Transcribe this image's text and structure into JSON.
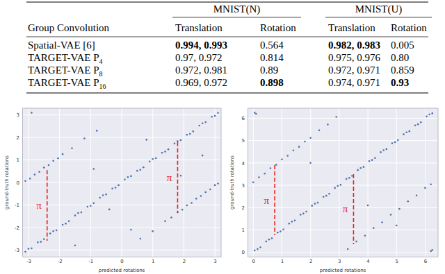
{
  "table": {
    "row_header": "Group Convolution",
    "groups": [
      {
        "label": "MNIST(N)",
        "columns": [
          "Translation",
          "Rotation"
        ]
      },
      {
        "label": "MNIST(U)",
        "columns": [
          "Translation",
          "Rotation"
        ]
      }
    ],
    "rows": [
      {
        "label": {
          "text": "Spatial-VAE [6]"
        },
        "cells": [
          {
            "text": "0.994, 0.993",
            "bold": true
          },
          {
            "text": "0.564",
            "bold": false
          },
          {
            "text": "0.982, 0.983",
            "bold": true
          },
          {
            "text": "0.005",
            "bold": false
          }
        ]
      },
      {
        "label": {
          "text": "TARGET-VAE P",
          "sub": "4"
        },
        "cells": [
          {
            "text": "0.97, 0.972",
            "bold": false
          },
          {
            "text": "0.814",
            "bold": false
          },
          {
            "text": "0.975, 0.976",
            "bold": false
          },
          {
            "text": "0.80",
            "bold": false
          }
        ]
      },
      {
        "label": {
          "text": "TARGET-VAE P",
          "sub": "8"
        },
        "cells": [
          {
            "text": "0.972, 0.981",
            "bold": false
          },
          {
            "text": "0.89",
            "bold": false
          },
          {
            "text": "0.972, 0.971",
            "bold": false
          },
          {
            "text": "0.859",
            "bold": false
          }
        ]
      },
      {
        "label": {
          "text": "TARGET-VAE P",
          "sub": "16"
        },
        "cells": [
          {
            "text": "0.969, 0.972",
            "bold": false
          },
          {
            "text": "0.898",
            "bold": true
          },
          {
            "text": "0.974, 0.971",
            "bold": false
          },
          {
            "text": "0.93",
            "bold": true
          }
        ]
      }
    ]
  },
  "chart_data": [
    {
      "type": "scatter",
      "x_label": "predicted rotations",
      "y_label": "ground-truth rotations",
      "color": "#4c72b0",
      "marker": "circle",
      "grid": true,
      "xlim": [
        -3.2,
        3.2
      ],
      "ylim": [
        -3.3,
        3.3
      ],
      "xticks": [
        -3,
        -2,
        -1,
        0,
        1,
        2,
        3
      ],
      "yticks": [
        -3,
        -2,
        -1,
        0,
        1,
        2,
        3
      ],
      "x": [
        -3.1,
        -2.9,
        -2.7,
        -2.5,
        -2.3,
        -2.1,
        -1.9,
        -1.7,
        -1.5,
        -1.3,
        -1.1,
        -0.9,
        -0.7,
        -0.5,
        -0.3,
        -0.1,
        0.1,
        0.3,
        0.5,
        0.7,
        0.9,
        1.1,
        1.3,
        1.5,
        1.7,
        1.9,
        2.1,
        2.3,
        2.5,
        2.7,
        2.9,
        3.1,
        -3.0,
        -2.6,
        -2.2,
        -1.8,
        -1.4,
        -1.0,
        -0.6,
        -0.2,
        0.2,
        0.6,
        1.0,
        1.4,
        1.8,
        2.2,
        2.6,
        3.0,
        -3.1,
        -2.95,
        -2.8,
        -2.65,
        -2.5,
        -2.35,
        -2.2,
        -2.05,
        -1.9,
        -1.6,
        -1.2,
        -0.8,
        0.6,
        1.0,
        1.4,
        1.6,
        1.8,
        1.95,
        2.1,
        2.25,
        2.4,
        2.55,
        2.7,
        2.85,
        3.0,
        3.1,
        -2.9,
        -0.4,
        0.8,
        1.9,
        -1.5,
        2.6,
        -0.9,
        0.3
      ],
      "values": [
        -3.08,
        -2.93,
        -2.66,
        -2.52,
        -2.27,
        -2.13,
        -1.88,
        -1.72,
        -1.47,
        -1.33,
        -1.08,
        -0.92,
        -0.68,
        -0.53,
        -0.27,
        -0.12,
        0.13,
        0.28,
        0.52,
        0.67,
        0.93,
        1.08,
        1.32,
        1.47,
        1.73,
        1.88,
        2.12,
        2.27,
        2.53,
        2.68,
        2.92,
        3.09,
        -2.95,
        -2.64,
        -2.17,
        -1.83,
        -1.36,
        -1.04,
        -0.57,
        -0.23,
        0.24,
        0.56,
        1.04,
        1.37,
        1.83,
        2.16,
        2.63,
        2.96,
        0.06,
        0.17,
        0.35,
        0.47,
        0.66,
        0.77,
        0.96,
        1.07,
        1.26,
        1.52,
        1.96,
        2.3,
        -2.5,
        -2.17,
        -1.72,
        -1.56,
        -1.33,
        -1.21,
        -1.02,
        -0.91,
        -0.72,
        -0.6,
        -0.43,
        -0.31,
        -0.12,
        -0.05,
        3.1,
        -1.2,
        1.9,
        0.3,
        -2.8,
        1.2,
        0.6,
        -2.1
      ],
      "annotations": [
        {
          "label": "π",
          "x": -2.4,
          "y": [
            0.55,
            -2.59
          ]
        },
        {
          "label": "π",
          "x": 1.8,
          "y": [
            1.8,
            -1.34
          ]
        }
      ]
    },
    {
      "type": "scatter",
      "x_label": "predicted rotations",
      "y_label": "ground-truth rotations",
      "color": "#4c72b0",
      "marker": "circle",
      "grid": true,
      "xlim": [
        -0.2,
        6.45
      ],
      "ylim": [
        -0.2,
        6.45
      ],
      "xticks": [
        0,
        1,
        2,
        3,
        4,
        5,
        6
      ],
      "yticks": [
        0,
        1,
        2,
        3,
        4,
        5,
        6
      ],
      "x": [
        0.05,
        0.25,
        0.45,
        0.65,
        0.85,
        1.05,
        1.25,
        1.45,
        1.65,
        1.85,
        2.05,
        2.25,
        2.45,
        2.65,
        2.85,
        3.05,
        3.25,
        3.45,
        3.65,
        3.85,
        4.05,
        4.25,
        4.45,
        4.65,
        4.85,
        5.05,
        5.25,
        5.45,
        5.65,
        5.85,
        6.05,
        6.25,
        0.15,
        0.55,
        0.95,
        1.35,
        1.75,
        2.15,
        2.55,
        2.95,
        3.35,
        3.75,
        4.15,
        4.55,
        4.95,
        5.35,
        5.75,
        6.15,
        0.0,
        0.2,
        0.4,
        0.6,
        0.8,
        1.0,
        1.2,
        1.4,
        1.6,
        1.8,
        2.0,
        2.3,
        2.6,
        2.9,
        0.05,
        0.1,
        3.3,
        3.6,
        3.9,
        4.2,
        4.5,
        4.8,
        5.1,
        5.4,
        5.7,
        6.0,
        6.2,
        6.2,
        6.25,
        4.0,
        2.0,
        5.0
      ],
      "values": [
        0.08,
        0.22,
        0.48,
        0.62,
        0.88,
        1.02,
        1.28,
        1.42,
        1.68,
        1.82,
        2.08,
        2.22,
        2.48,
        2.62,
        2.88,
        3.02,
        3.28,
        3.42,
        3.68,
        3.82,
        4.08,
        4.22,
        4.48,
        4.62,
        4.88,
        5.02,
        5.28,
        5.42,
        5.68,
        5.82,
        6.08,
        6.22,
        0.14,
        0.57,
        0.93,
        1.37,
        1.73,
        2.17,
        2.53,
        2.97,
        3.33,
        3.77,
        4.13,
        4.57,
        4.93,
        5.37,
        5.73,
        6.17,
        3.13,
        3.36,
        3.52,
        3.76,
        3.92,
        4.16,
        4.32,
        4.56,
        4.72,
        4.96,
        5.12,
        5.46,
        5.72,
        6.06,
        6.25,
        6.2,
        0.14,
        0.48,
        0.74,
        1.08,
        1.34,
        1.68,
        1.94,
        2.28,
        2.54,
        2.88,
        3.04,
        0.05,
        0.1,
        2.1,
        4.0,
        1.2
      ],
      "annotations": [
        {
          "label": "π",
          "x": 0.75,
          "y": [
            3.9,
            0.76
          ]
        },
        {
          "label": "π",
          "x": 3.5,
          "y": [
            3.5,
            0.36
          ]
        }
      ]
    }
  ]
}
